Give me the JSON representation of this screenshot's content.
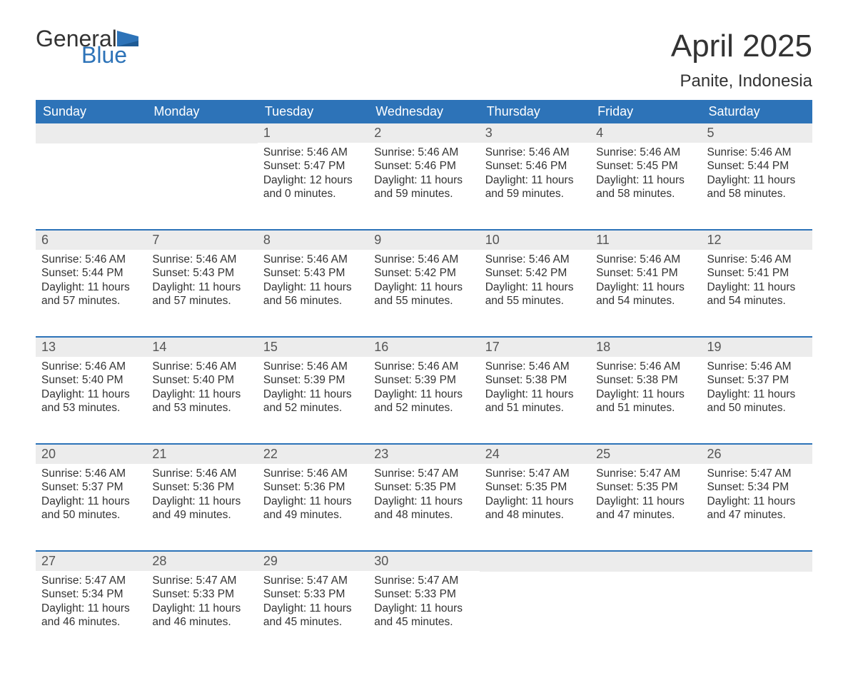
{
  "logo": {
    "text_top": "General",
    "text_bottom": "Blue",
    "color_top": "#333333",
    "color_bottom": "#2d73b8",
    "flag_color": "#2d73b8"
  },
  "title": "April 2025",
  "location": "Panite, Indonesia",
  "colors": {
    "header_bg": "#2d73b8",
    "header_text": "#ffffff",
    "daynum_bg": "#ececec",
    "row_border": "#2d73b8",
    "body_text": "#333333",
    "page_bg": "#ffffff"
  },
  "day_names": [
    "Sunday",
    "Monday",
    "Tuesday",
    "Wednesday",
    "Thursday",
    "Friday",
    "Saturday"
  ],
  "labels": {
    "sunrise": "Sunrise:",
    "sunset": "Sunset:",
    "daylight": "Daylight:"
  },
  "weeks": [
    [
      {
        "day": "",
        "sunrise": "",
        "sunset": "",
        "daylight": ""
      },
      {
        "day": "",
        "sunrise": "",
        "sunset": "",
        "daylight": ""
      },
      {
        "day": "1",
        "sunrise": "5:46 AM",
        "sunset": "5:47 PM",
        "daylight": "12 hours and 0 minutes."
      },
      {
        "day": "2",
        "sunrise": "5:46 AM",
        "sunset": "5:46 PM",
        "daylight": "11 hours and 59 minutes."
      },
      {
        "day": "3",
        "sunrise": "5:46 AM",
        "sunset": "5:46 PM",
        "daylight": "11 hours and 59 minutes."
      },
      {
        "day": "4",
        "sunrise": "5:46 AM",
        "sunset": "5:45 PM",
        "daylight": "11 hours and 58 minutes."
      },
      {
        "day": "5",
        "sunrise": "5:46 AM",
        "sunset": "5:44 PM",
        "daylight": "11 hours and 58 minutes."
      }
    ],
    [
      {
        "day": "6",
        "sunrise": "5:46 AM",
        "sunset": "5:44 PM",
        "daylight": "11 hours and 57 minutes."
      },
      {
        "day": "7",
        "sunrise": "5:46 AM",
        "sunset": "5:43 PM",
        "daylight": "11 hours and 57 minutes."
      },
      {
        "day": "8",
        "sunrise": "5:46 AM",
        "sunset": "5:43 PM",
        "daylight": "11 hours and 56 minutes."
      },
      {
        "day": "9",
        "sunrise": "5:46 AM",
        "sunset": "5:42 PM",
        "daylight": "11 hours and 55 minutes."
      },
      {
        "day": "10",
        "sunrise": "5:46 AM",
        "sunset": "5:42 PM",
        "daylight": "11 hours and 55 minutes."
      },
      {
        "day": "11",
        "sunrise": "5:46 AM",
        "sunset": "5:41 PM",
        "daylight": "11 hours and 54 minutes."
      },
      {
        "day": "12",
        "sunrise": "5:46 AM",
        "sunset": "5:41 PM",
        "daylight": "11 hours and 54 minutes."
      }
    ],
    [
      {
        "day": "13",
        "sunrise": "5:46 AM",
        "sunset": "5:40 PM",
        "daylight": "11 hours and 53 minutes."
      },
      {
        "day": "14",
        "sunrise": "5:46 AM",
        "sunset": "5:40 PM",
        "daylight": "11 hours and 53 minutes."
      },
      {
        "day": "15",
        "sunrise": "5:46 AM",
        "sunset": "5:39 PM",
        "daylight": "11 hours and 52 minutes."
      },
      {
        "day": "16",
        "sunrise": "5:46 AM",
        "sunset": "5:39 PM",
        "daylight": "11 hours and 52 minutes."
      },
      {
        "day": "17",
        "sunrise": "5:46 AM",
        "sunset": "5:38 PM",
        "daylight": "11 hours and 51 minutes."
      },
      {
        "day": "18",
        "sunrise": "5:46 AM",
        "sunset": "5:38 PM",
        "daylight": "11 hours and 51 minutes."
      },
      {
        "day": "19",
        "sunrise": "5:46 AM",
        "sunset": "5:37 PM",
        "daylight": "11 hours and 50 minutes."
      }
    ],
    [
      {
        "day": "20",
        "sunrise": "5:46 AM",
        "sunset": "5:37 PM",
        "daylight": "11 hours and 50 minutes."
      },
      {
        "day": "21",
        "sunrise": "5:46 AM",
        "sunset": "5:36 PM",
        "daylight": "11 hours and 49 minutes."
      },
      {
        "day": "22",
        "sunrise": "5:46 AM",
        "sunset": "5:36 PM",
        "daylight": "11 hours and 49 minutes."
      },
      {
        "day": "23",
        "sunrise": "5:47 AM",
        "sunset": "5:35 PM",
        "daylight": "11 hours and 48 minutes."
      },
      {
        "day": "24",
        "sunrise": "5:47 AM",
        "sunset": "5:35 PM",
        "daylight": "11 hours and 48 minutes."
      },
      {
        "day": "25",
        "sunrise": "5:47 AM",
        "sunset": "5:35 PM",
        "daylight": "11 hours and 47 minutes."
      },
      {
        "day": "26",
        "sunrise": "5:47 AM",
        "sunset": "5:34 PM",
        "daylight": "11 hours and 47 minutes."
      }
    ],
    [
      {
        "day": "27",
        "sunrise": "5:47 AM",
        "sunset": "5:34 PM",
        "daylight": "11 hours and 46 minutes."
      },
      {
        "day": "28",
        "sunrise": "5:47 AM",
        "sunset": "5:33 PM",
        "daylight": "11 hours and 46 minutes."
      },
      {
        "day": "29",
        "sunrise": "5:47 AM",
        "sunset": "5:33 PM",
        "daylight": "11 hours and 45 minutes."
      },
      {
        "day": "30",
        "sunrise": "5:47 AM",
        "sunset": "5:33 PM",
        "daylight": "11 hours and 45 minutes."
      },
      {
        "day": "",
        "sunrise": "",
        "sunset": "",
        "daylight": ""
      },
      {
        "day": "",
        "sunrise": "",
        "sunset": "",
        "daylight": ""
      },
      {
        "day": "",
        "sunrise": "",
        "sunset": "",
        "daylight": ""
      }
    ]
  ]
}
